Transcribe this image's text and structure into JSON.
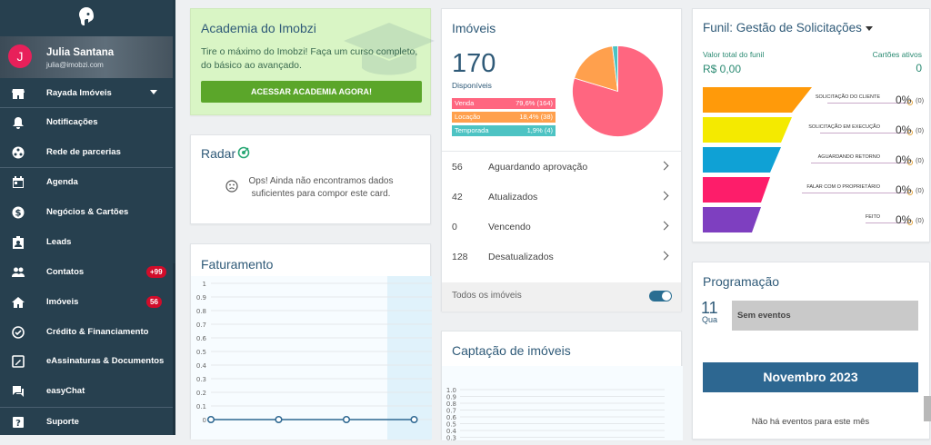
{
  "sidebar": {
    "user": {
      "initial": "J",
      "name": "Julia Santana",
      "email": "julia@imobzi.com"
    },
    "items": [
      {
        "label": "Rayada Imóveis",
        "icon": "store-icon"
      },
      {
        "label": "Notificações",
        "icon": "bell-icon"
      },
      {
        "label": "Rede de parcerias",
        "icon": "network-icon"
      },
      {
        "label": "Agenda",
        "icon": "calendar-icon"
      },
      {
        "label": "Negócios & Cartões",
        "icon": "dollar-icon"
      },
      {
        "label": "Leads",
        "icon": "contact-card-icon"
      },
      {
        "label": "Contatos",
        "icon": "people-icon",
        "badge": "+99"
      },
      {
        "label": "Imóveis",
        "icon": "home-icon",
        "badge": "56"
      },
      {
        "label": "Crédito & Financiamento",
        "icon": "badge-check-icon"
      },
      {
        "label": "eAssinaturas & Documentos",
        "icon": "sign-doc-icon"
      },
      {
        "label": "easyChat",
        "icon": "chat-icon"
      },
      {
        "label": "Suporte",
        "icon": "help-icon"
      }
    ]
  },
  "academia": {
    "title": "Academia do Imobzi",
    "desc": "Tire o máximo do Imobzi! Faça um curso completo, do básico ao avançado.",
    "button": "ACESSAR ACADEMIA AGORA!"
  },
  "radar": {
    "title": "Radar",
    "message": "Ops! Ainda não encontramos dados suficientes para compor este card."
  },
  "faturamento": {
    "title": "Faturamento"
  },
  "imoveis": {
    "title": "Imóveis",
    "total": "170",
    "total_label": "Disponíveis",
    "breakdown": [
      {
        "label": "Venda",
        "value": "79,6% (164)",
        "color": "#ff6680"
      },
      {
        "label": "Locação",
        "value": "18,4% (38)",
        "color": "#ffa04d"
      },
      {
        "label": "Temporada",
        "value": "1,9% (4)",
        "color": "#4dc3c3"
      }
    ],
    "rows": [
      {
        "count": "56",
        "label": "Aguardando aprovação"
      },
      {
        "count": "42",
        "label": "Atualizados"
      },
      {
        "count": "0",
        "label": "Vencendo"
      },
      {
        "count": "128",
        "label": "Desatualizados"
      }
    ],
    "footer": "Todos os imóveis"
  },
  "captacao": {
    "title": "Captação de imóveis"
  },
  "funil": {
    "title": "Funil: Gestão de Solicitações",
    "total_label": "Valor total do funil",
    "total_value": "R$ 0,00",
    "active_label": "Cartões ativos",
    "active_value": "0",
    "stages": [
      {
        "label": "SOLICITAÇÃO DO CLIENTE",
        "pct": "0%",
        "count": "(0)",
        "color": "#ff9a0a"
      },
      {
        "label": "SOLICITAÇÃO EM EXECUÇÃO",
        "pct": "0%",
        "count": "(0)",
        "color": "#f4ea00"
      },
      {
        "label": "AGUARDANDO RETORNO",
        "pct": "0%",
        "count": "(0)",
        "color": "#0fa1d5"
      },
      {
        "label": "FALAR COM O PROPRIETÁRIO",
        "pct": "0%",
        "count": "(0)",
        "color": "#fd1d6a"
      },
      {
        "label": "FEITO",
        "pct": "0%",
        "count": "(0)",
        "color": "#7e3fc0"
      }
    ]
  },
  "programacao": {
    "title": "Programação",
    "day": "11",
    "weekday": "Qua",
    "event": "Sem eventos",
    "month": "Novembro 2023",
    "no_events": "Não há eventos para este mês"
  },
  "chart_data": [
    {
      "type": "line",
      "title": "Faturamento",
      "y_ticks": [
        "1",
        "0.9",
        "0.8",
        "0.7",
        "0.6",
        "0.5",
        "0.4",
        "0.3",
        "0.2",
        "0.1",
        "0"
      ],
      "ylim": [
        0,
        1
      ],
      "series": [
        {
          "values": [
            0,
            0,
            0,
            0
          ]
        }
      ],
      "grid": true
    },
    {
      "type": "line",
      "title": "Captação de imóveis",
      "y_ticks": [
        "1.0",
        "0.9",
        "0.8",
        "0.7",
        "0.6",
        "0.5",
        "0.4",
        "0.3"
      ],
      "ylim": [
        0,
        1
      ],
      "grid": true
    },
    {
      "type": "pie",
      "title": "Imóveis",
      "categories": [
        "Venda",
        "Locação",
        "Temporada"
      ],
      "values": [
        79.6,
        18.4,
        1.9
      ],
      "colors": [
        "#ff6680",
        "#ffa04d",
        "#4dc3c3"
      ]
    }
  ]
}
